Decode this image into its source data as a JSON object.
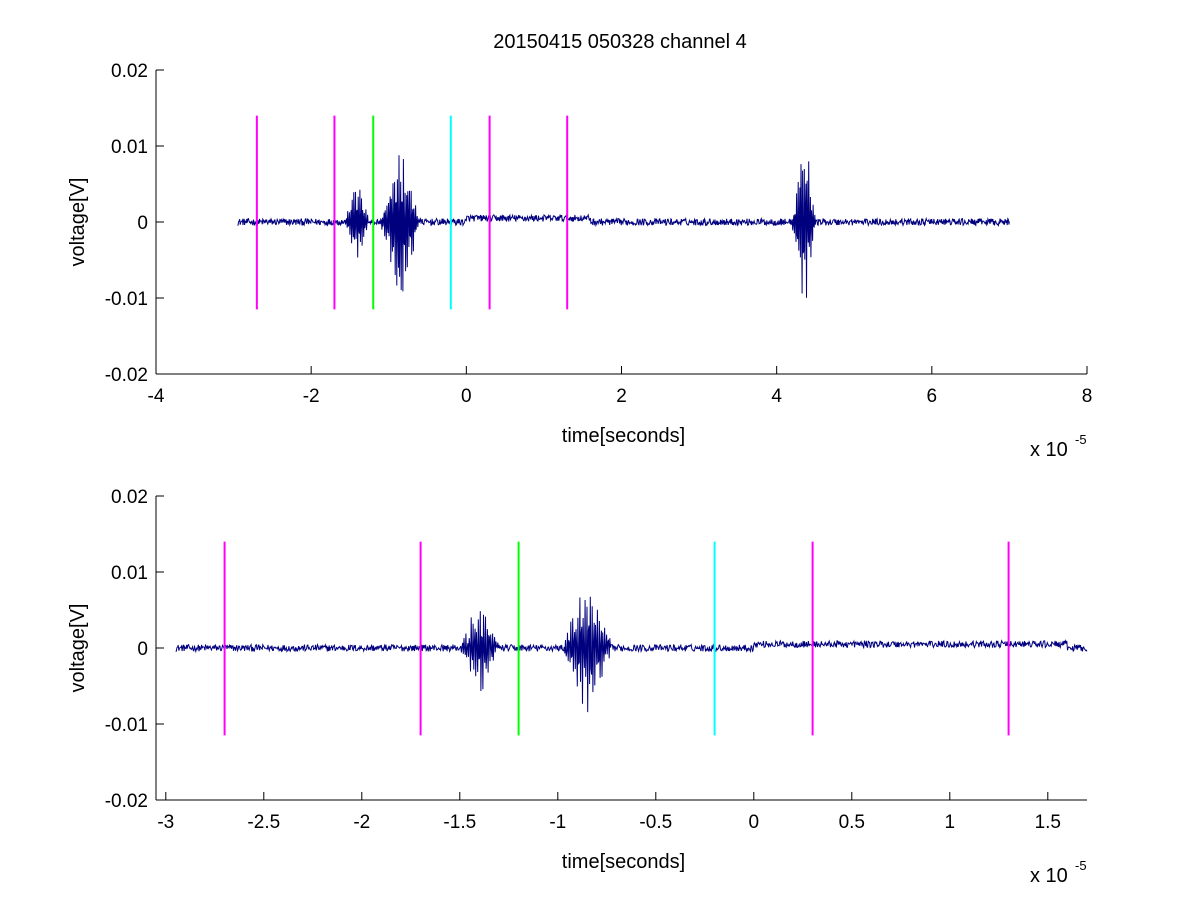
{
  "figure": {
    "title": "20150415 050328 channel 4"
  },
  "chart_data": [
    {
      "type": "line",
      "title": "20150415 050328 channel 4",
      "xlabel": "time[seconds]",
      "ylabel": "voltage[V]",
      "x_exponent_label": "x 10",
      "x_exponent": "-5",
      "xlim": [
        -4,
        8
      ],
      "ylim": [
        -0.02,
        0.02
      ],
      "x_ticks": [
        -4,
        -2,
        0,
        2,
        4,
        6,
        8
      ],
      "x_tick_labels": [
        "-4",
        "-2",
        "0",
        "2",
        "4",
        "6",
        "8"
      ],
      "y_ticks": [
        -0.02,
        -0.01,
        0,
        0.01,
        0.02
      ],
      "y_tick_labels": [
        "-0.02",
        "-0.01",
        "0",
        "0.01",
        "0.02"
      ],
      "grid": false,
      "signal": {
        "color": "#00007f",
        "x_range": [
          -2.95,
          7.0
        ],
        "bursts": [
          {
            "center": -1.4,
            "width": 0.12,
            "amp": 0.0055
          },
          {
            "center": -0.85,
            "width": 0.2,
            "amp": 0.0085
          },
          {
            "center": 4.35,
            "width": 0.12,
            "amp": 0.011
          }
        ]
      },
      "markers": [
        {
          "x": -2.7,
          "y_range": [
            -0.0115,
            0.014
          ],
          "color": "#ff00ff"
        },
        {
          "x": -1.7,
          "y_range": [
            -0.0115,
            0.014
          ],
          "color": "#ff00ff"
        },
        {
          "x": -1.2,
          "y_range": [
            -0.0115,
            0.014
          ],
          "color": "#00ff00"
        },
        {
          "x": -0.2,
          "y_range": [
            -0.0115,
            0.014
          ],
          "color": "#00ffff"
        },
        {
          "x": 0.3,
          "y_range": [
            -0.0115,
            0.014
          ],
          "color": "#ff00ff"
        },
        {
          "x": 1.3,
          "y_range": [
            -0.0115,
            0.014
          ],
          "color": "#ff00ff"
        }
      ]
    },
    {
      "type": "line",
      "title": "",
      "xlabel": "time[seconds]",
      "ylabel": "voltage[V]",
      "x_exponent_label": "x 10",
      "x_exponent": "-5",
      "xlim": [
        -3.05,
        1.7
      ],
      "ylim": [
        -0.02,
        0.02
      ],
      "x_ticks": [
        -3,
        -2.5,
        -2,
        -1.5,
        -1,
        -0.5,
        0,
        0.5,
        1,
        1.5
      ],
      "x_tick_labels": [
        "-3",
        "-2.5",
        "-2",
        "-1.5",
        "-1",
        "-0.5",
        "0",
        "0.5",
        "1",
        "1.5"
      ],
      "y_ticks": [
        -0.02,
        -0.01,
        0,
        0.01,
        0.02
      ],
      "y_tick_labels": [
        "-0.02",
        "-0.01",
        "0",
        "0.01",
        "0.02"
      ],
      "grid": false,
      "signal": {
        "color": "#00007f",
        "x_range": [
          -2.95,
          1.7
        ],
        "bursts": [
          {
            "center": -1.4,
            "width": 0.08,
            "amp": 0.0055
          },
          {
            "center": -0.85,
            "width": 0.1,
            "amp": 0.0085
          }
        ]
      },
      "markers": [
        {
          "x": -2.7,
          "y_range": [
            -0.0115,
            0.014
          ],
          "color": "#ff00ff"
        },
        {
          "x": -1.7,
          "y_range": [
            -0.0115,
            0.014
          ],
          "color": "#ff00ff"
        },
        {
          "x": -1.2,
          "y_range": [
            -0.0115,
            0.014
          ],
          "color": "#00ff00"
        },
        {
          "x": -0.2,
          "y_range": [
            -0.0115,
            0.014
          ],
          "color": "#00ffff"
        },
        {
          "x": 0.3,
          "y_range": [
            -0.0115,
            0.014
          ],
          "color": "#ff00ff"
        },
        {
          "x": 1.3,
          "y_range": [
            -0.0115,
            0.014
          ],
          "color": "#ff00ff"
        }
      ]
    }
  ]
}
